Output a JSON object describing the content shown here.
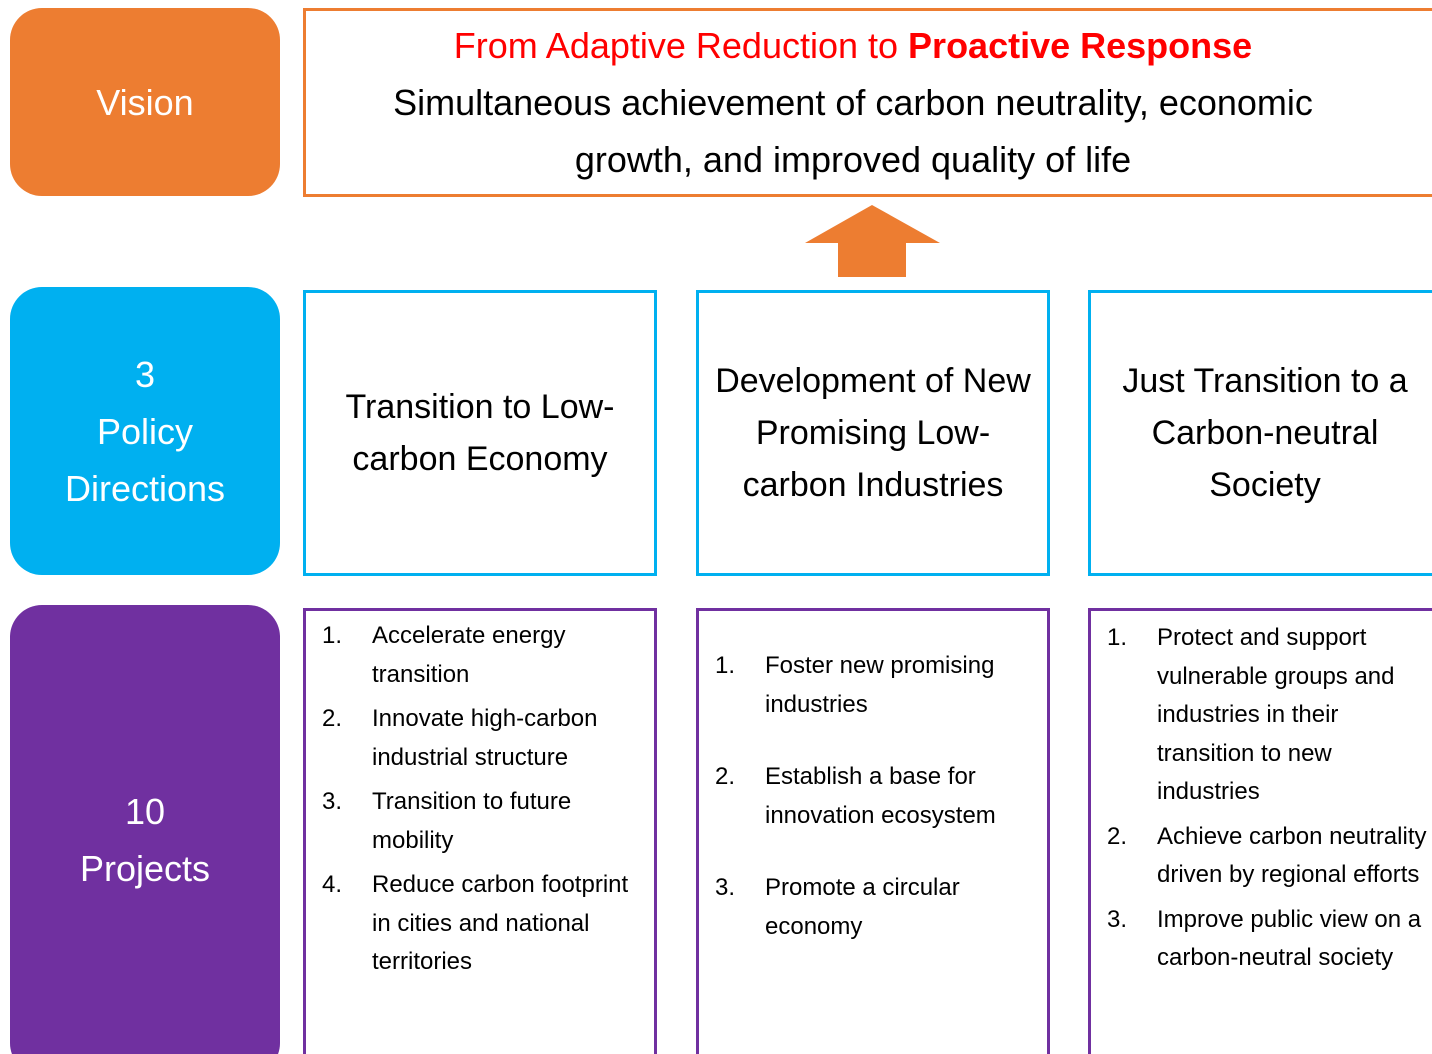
{
  "vision": {
    "label": "Vision",
    "headline": {
      "plain": "From Adaptive Reduction to ",
      "bold": "Proactive Response"
    },
    "text": "Simultaneous achievement of carbon neutrality, economic growth, and improved quality of life"
  },
  "directions": {
    "label": [
      "3",
      "Policy",
      "Directions"
    ],
    "items": [
      "Transition to Low-carbon Economy",
      "Development of New Promising Low-carbon Industries",
      "Just Transition to a Carbon-neutral Society"
    ]
  },
  "projects": {
    "label": [
      "10",
      "Projects"
    ],
    "columns": [
      [
        {
          "number": "1.",
          "text": "Accelerate energy transition"
        },
        {
          "number": "2.",
          "text": "Innovate high-carbon industrial structure"
        },
        {
          "number": "3.",
          "text": "Transition to future mobility"
        },
        {
          "number": "4.",
          "text": "Reduce carbon footprint in cities and national territories"
        }
      ],
      [
        {
          "number": "1.",
          "text": "Foster new promising industries"
        },
        {
          "number": "2.",
          "text": "Establish a base for innovation ecosystem"
        },
        {
          "number": "3.",
          "text": "Promote a circular economy"
        }
      ],
      [
        {
          "number": "1.",
          "text": "Protect and support vulnerable groups and industries in their transition to new industries"
        },
        {
          "number": "2.",
          "text": "Achieve carbon neutrality driven by regional efforts"
        },
        {
          "number": "3.",
          "text": "Improve public view on a carbon-neutral society"
        }
      ]
    ]
  }
}
